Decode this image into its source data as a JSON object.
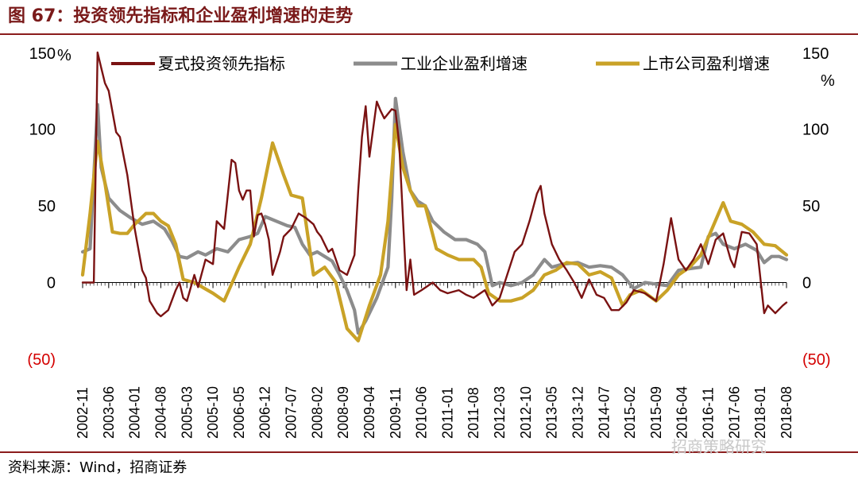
{
  "header": {
    "title": "图 67：投资领先指标和企业盈利增速的走势"
  },
  "footer": {
    "source": "资料来源：Wind，招商证券",
    "watermark": "招商策略研究"
  },
  "colors": {
    "accent": "#8b1c1c",
    "investment": "#7a1212",
    "industrial": "#8c8c8c",
    "listed": "#c9a227",
    "negative": "#d40000"
  },
  "chart_data": {
    "type": "line",
    "title": "投资领先指标和企业盈利增速的走势",
    "unit_left": "%",
    "unit_right": "%",
    "ylim": [
      -50,
      150
    ],
    "yticks": [
      -50,
      0,
      50,
      100,
      150
    ],
    "ytick_labels_left": [
      "(50)",
      "0",
      "50",
      "100",
      "150"
    ],
    "ytick_labels_right": [
      "(50)",
      "0",
      "50",
      "100",
      "150"
    ],
    "xlim": [
      "2002-11",
      "2018-08"
    ],
    "x_tick_labels": [
      "2002-11",
      "2003-06",
      "2004-01",
      "2004-08",
      "2005-03",
      "2005-10",
      "2006-05",
      "2006-12",
      "2007-07",
      "2008-02",
      "2008-09",
      "2009-04",
      "2009-11",
      "2010-06",
      "2011-01",
      "2011-08",
      "2012-03",
      "2012-10",
      "2013-05",
      "2013-12",
      "2014-07",
      "2015-02",
      "2015-09",
      "2016-04",
      "2016-11",
      "2017-06",
      "2018-01",
      "2018-08"
    ],
    "legend": [
      "夏式投资领先指标",
      "工业企业盈利增速",
      "上市公司盈利增速"
    ],
    "series": [
      {
        "name": "夏式投资领先指标",
        "points": [
          [
            "2002-11",
            0
          ],
          [
            "2003-02",
            0
          ],
          [
            "2003-03",
            150
          ],
          [
            "2003-04",
            140
          ],
          [
            "2003-05",
            130
          ],
          [
            "2003-06",
            125
          ],
          [
            "2003-08",
            98
          ],
          [
            "2003-09",
            95
          ],
          [
            "2003-11",
            70
          ],
          [
            "2004-01",
            35
          ],
          [
            "2004-03",
            8
          ],
          [
            "2004-04",
            3
          ],
          [
            "2004-05",
            -12
          ],
          [
            "2004-07",
            -20
          ],
          [
            "2004-08",
            -22
          ],
          [
            "2004-10",
            -18
          ],
          [
            "2004-12",
            -5
          ],
          [
            "2005-01",
            0
          ],
          [
            "2005-02",
            -10
          ],
          [
            "2005-03",
            -12
          ],
          [
            "2005-05",
            5
          ],
          [
            "2005-06",
            -3
          ],
          [
            "2005-08",
            15
          ],
          [
            "2005-10",
            12
          ],
          [
            "2005-11",
            40
          ],
          [
            "2006-01",
            35
          ],
          [
            "2006-03",
            80
          ],
          [
            "2006-04",
            78
          ],
          [
            "2006-05",
            60
          ],
          [
            "2006-06",
            54
          ],
          [
            "2006-07",
            60
          ],
          [
            "2006-08",
            60
          ],
          [
            "2006-09",
            30
          ],
          [
            "2006-10",
            44
          ],
          [
            "2006-11",
            45
          ],
          [
            "2006-12",
            38
          ],
          [
            "2007-01",
            28
          ],
          [
            "2007-02",
            5
          ],
          [
            "2007-04",
            20
          ],
          [
            "2007-05",
            30
          ],
          [
            "2007-07",
            35
          ],
          [
            "2007-09",
            45
          ],
          [
            "2007-11",
            42
          ],
          [
            "2008-01",
            38
          ],
          [
            "2008-02",
            33
          ],
          [
            "2008-03",
            30
          ],
          [
            "2008-04",
            25
          ],
          [
            "2008-05",
            20
          ],
          [
            "2008-06",
            22
          ],
          [
            "2008-08",
            8
          ],
          [
            "2008-10",
            5
          ],
          [
            "2008-12",
            18
          ],
          [
            "2009-01",
            60
          ],
          [
            "2009-02",
            95
          ],
          [
            "2009-03",
            115
          ],
          [
            "2009-04",
            82
          ],
          [
            "2009-06",
            118
          ],
          [
            "2009-07",
            112
          ],
          [
            "2009-08",
            107
          ],
          [
            "2009-10",
            113
          ],
          [
            "2009-11",
            112
          ],
          [
            "2009-12",
            90
          ],
          [
            "2010-02",
            -5
          ],
          [
            "2010-03",
            15
          ],
          [
            "2010-04",
            -8
          ],
          [
            "2010-06",
            -5
          ],
          [
            "2010-09",
            0
          ],
          [
            "2010-11",
            -5
          ],
          [
            "2011-01",
            -7
          ],
          [
            "2011-04",
            -5
          ],
          [
            "2011-06",
            -8
          ],
          [
            "2011-08",
            -10
          ],
          [
            "2011-11",
            -5
          ],
          [
            "2012-01",
            -15
          ],
          [
            "2012-03",
            -10
          ],
          [
            "2012-05",
            5
          ],
          [
            "2012-07",
            20
          ],
          [
            "2012-09",
            25
          ],
          [
            "2012-11",
            40
          ],
          [
            "2013-01",
            58
          ],
          [
            "2013-02",
            63
          ],
          [
            "2013-03",
            45
          ],
          [
            "2013-05",
            25
          ],
          [
            "2013-07",
            15
          ],
          [
            "2013-09",
            8
          ],
          [
            "2013-11",
            0
          ],
          [
            "2014-01",
            -10
          ],
          [
            "2014-03",
            2
          ],
          [
            "2014-05",
            -8
          ],
          [
            "2014-07",
            -10
          ],
          [
            "2014-09",
            -18
          ],
          [
            "2014-11",
            -18
          ],
          [
            "2015-01",
            -13
          ],
          [
            "2015-03",
            -5
          ],
          [
            "2015-06",
            -7
          ],
          [
            "2015-09",
            -12
          ],
          [
            "2015-11",
            12
          ],
          [
            "2016-01",
            42
          ],
          [
            "2016-03",
            15
          ],
          [
            "2016-05",
            8
          ],
          [
            "2016-07",
            15
          ],
          [
            "2016-09",
            25
          ],
          [
            "2016-11",
            12
          ],
          [
            "2017-01",
            28
          ],
          [
            "2017-03",
            32
          ],
          [
            "2017-05",
            15
          ],
          [
            "2017-06",
            10
          ],
          [
            "2017-08",
            33
          ],
          [
            "2017-10",
            32
          ],
          [
            "2017-12",
            25
          ],
          [
            "2018-02",
            -20
          ],
          [
            "2018-03",
            -15
          ],
          [
            "2018-05",
            -20
          ],
          [
            "2018-07",
            -15
          ],
          [
            "2018-08",
            -13
          ]
        ]
      },
      {
        "name": "工业企业盈利增速",
        "points": [
          [
            "2002-11",
            20
          ],
          [
            "2003-01",
            22
          ],
          [
            "2003-03",
            116
          ],
          [
            "2003-04",
            75
          ],
          [
            "2003-06",
            55
          ],
          [
            "2003-09",
            47
          ],
          [
            "2003-12",
            42
          ],
          [
            "2004-03",
            38
          ],
          [
            "2004-06",
            40
          ],
          [
            "2004-09",
            35
          ],
          [
            "2004-11",
            27
          ],
          [
            "2005-01",
            17
          ],
          [
            "2005-03",
            16
          ],
          [
            "2005-06",
            20
          ],
          [
            "2005-08",
            18
          ],
          [
            "2005-11",
            22
          ],
          [
            "2006-02",
            20
          ],
          [
            "2006-05",
            28
          ],
          [
            "2006-08",
            30
          ],
          [
            "2006-10",
            32
          ],
          [
            "2006-12",
            43
          ],
          [
            "2007-03",
            40
          ],
          [
            "2007-06",
            37
          ],
          [
            "2007-08",
            36
          ],
          [
            "2007-10",
            25
          ],
          [
            "2007-12",
            18
          ],
          [
            "2008-02",
            20
          ],
          [
            "2008-04",
            17
          ],
          [
            "2008-06",
            14
          ],
          [
            "2008-08",
            5
          ],
          [
            "2008-10",
            -5
          ],
          [
            "2008-12",
            -18
          ],
          [
            "2009-01",
            -33
          ],
          [
            "2009-03",
            -25
          ],
          [
            "2009-06",
            -10
          ],
          [
            "2009-09",
            10
          ],
          [
            "2009-10",
            55
          ],
          [
            "2009-11",
            120
          ],
          [
            "2010-01",
            85
          ],
          [
            "2010-03",
            60
          ],
          [
            "2010-05",
            53
          ],
          [
            "2010-07",
            50
          ],
          [
            "2010-09",
            40
          ],
          [
            "2010-12",
            33
          ],
          [
            "2011-03",
            28
          ],
          [
            "2011-06",
            28
          ],
          [
            "2011-09",
            25
          ],
          [
            "2011-11",
            20
          ],
          [
            "2012-01",
            -2
          ],
          [
            "2012-03",
            0
          ],
          [
            "2012-06",
            -2
          ],
          [
            "2012-09",
            0
          ],
          [
            "2012-12",
            5
          ],
          [
            "2013-03",
            15
          ],
          [
            "2013-05",
            10
          ],
          [
            "2013-08",
            12
          ],
          [
            "2013-12",
            13
          ],
          [
            "2014-03",
            10
          ],
          [
            "2014-06",
            11
          ],
          [
            "2014-09",
            10
          ],
          [
            "2014-12",
            5
          ],
          [
            "2015-03",
            -4
          ],
          [
            "2015-06",
            0
          ],
          [
            "2015-09",
            -1
          ],
          [
            "2015-12",
            -2
          ],
          [
            "2016-03",
            8
          ],
          [
            "2016-06",
            9
          ],
          [
            "2016-09",
            10
          ],
          [
            "2016-11",
            30
          ],
          [
            "2017-01",
            32
          ],
          [
            "2017-03",
            25
          ],
          [
            "2017-06",
            22
          ],
          [
            "2017-09",
            25
          ],
          [
            "2017-12",
            21
          ],
          [
            "2018-02",
            13
          ],
          [
            "2018-04",
            17
          ],
          [
            "2018-06",
            17
          ],
          [
            "2018-08",
            15
          ]
        ]
      },
      {
        "name": "上市公司盈利增速",
        "points": [
          [
            "2002-11",
            5
          ],
          [
            "2003-01",
            45
          ],
          [
            "2003-03",
            92
          ],
          [
            "2003-05",
            65
          ],
          [
            "2003-07",
            33
          ],
          [
            "2003-09",
            32
          ],
          [
            "2003-11",
            32
          ],
          [
            "2004-01",
            38
          ],
          [
            "2004-04",
            45
          ],
          [
            "2004-06",
            45
          ],
          [
            "2004-08",
            40
          ],
          [
            "2004-10",
            37
          ],
          [
            "2004-12",
            25
          ],
          [
            "2005-02",
            2
          ],
          [
            "2005-05",
            0
          ],
          [
            "2005-10",
            -7
          ],
          [
            "2006-01",
            -12
          ],
          [
            "2006-05",
            10
          ],
          [
            "2006-08",
            25
          ],
          [
            "2006-11",
            55
          ],
          [
            "2007-02",
            91
          ],
          [
            "2007-05",
            70
          ],
          [
            "2007-07",
            57
          ],
          [
            "2007-10",
            55
          ],
          [
            "2008-01",
            5
          ],
          [
            "2008-04",
            10
          ],
          [
            "2008-07",
            0
          ],
          [
            "2008-10",
            -30
          ],
          [
            "2009-01",
            -38
          ],
          [
            "2009-04",
            -15
          ],
          [
            "2009-07",
            5
          ],
          [
            "2009-09",
            40
          ],
          [
            "2009-11",
            103
          ],
          [
            "2010-01",
            75
          ],
          [
            "2010-03",
            60
          ],
          [
            "2010-05",
            50
          ],
          [
            "2010-07",
            50
          ],
          [
            "2010-10",
            22
          ],
          [
            "2011-01",
            18
          ],
          [
            "2011-04",
            15
          ],
          [
            "2011-08",
            15
          ],
          [
            "2011-10",
            10
          ],
          [
            "2011-12",
            -7
          ],
          [
            "2012-03",
            -12
          ],
          [
            "2012-06",
            -12
          ],
          [
            "2012-09",
            -10
          ],
          [
            "2012-12",
            -5
          ],
          [
            "2013-03",
            5
          ],
          [
            "2013-06",
            8
          ],
          [
            "2013-09",
            13
          ],
          [
            "2013-12",
            12
          ],
          [
            "2014-03",
            5
          ],
          [
            "2014-06",
            7
          ],
          [
            "2014-09",
            3
          ],
          [
            "2014-12",
            -15
          ],
          [
            "2015-02",
            -8
          ],
          [
            "2015-05",
            -5
          ],
          [
            "2015-09",
            -12
          ],
          [
            "2015-12",
            -5
          ],
          [
            "2016-03",
            5
          ],
          [
            "2016-06",
            10
          ],
          [
            "2016-09",
            18
          ],
          [
            "2016-12",
            35
          ],
          [
            "2017-03",
            52
          ],
          [
            "2017-05",
            40
          ],
          [
            "2017-08",
            38
          ],
          [
            "2017-11",
            33
          ],
          [
            "2018-02",
            25
          ],
          [
            "2018-05",
            24
          ],
          [
            "2018-08",
            18
          ]
        ]
      }
    ]
  }
}
